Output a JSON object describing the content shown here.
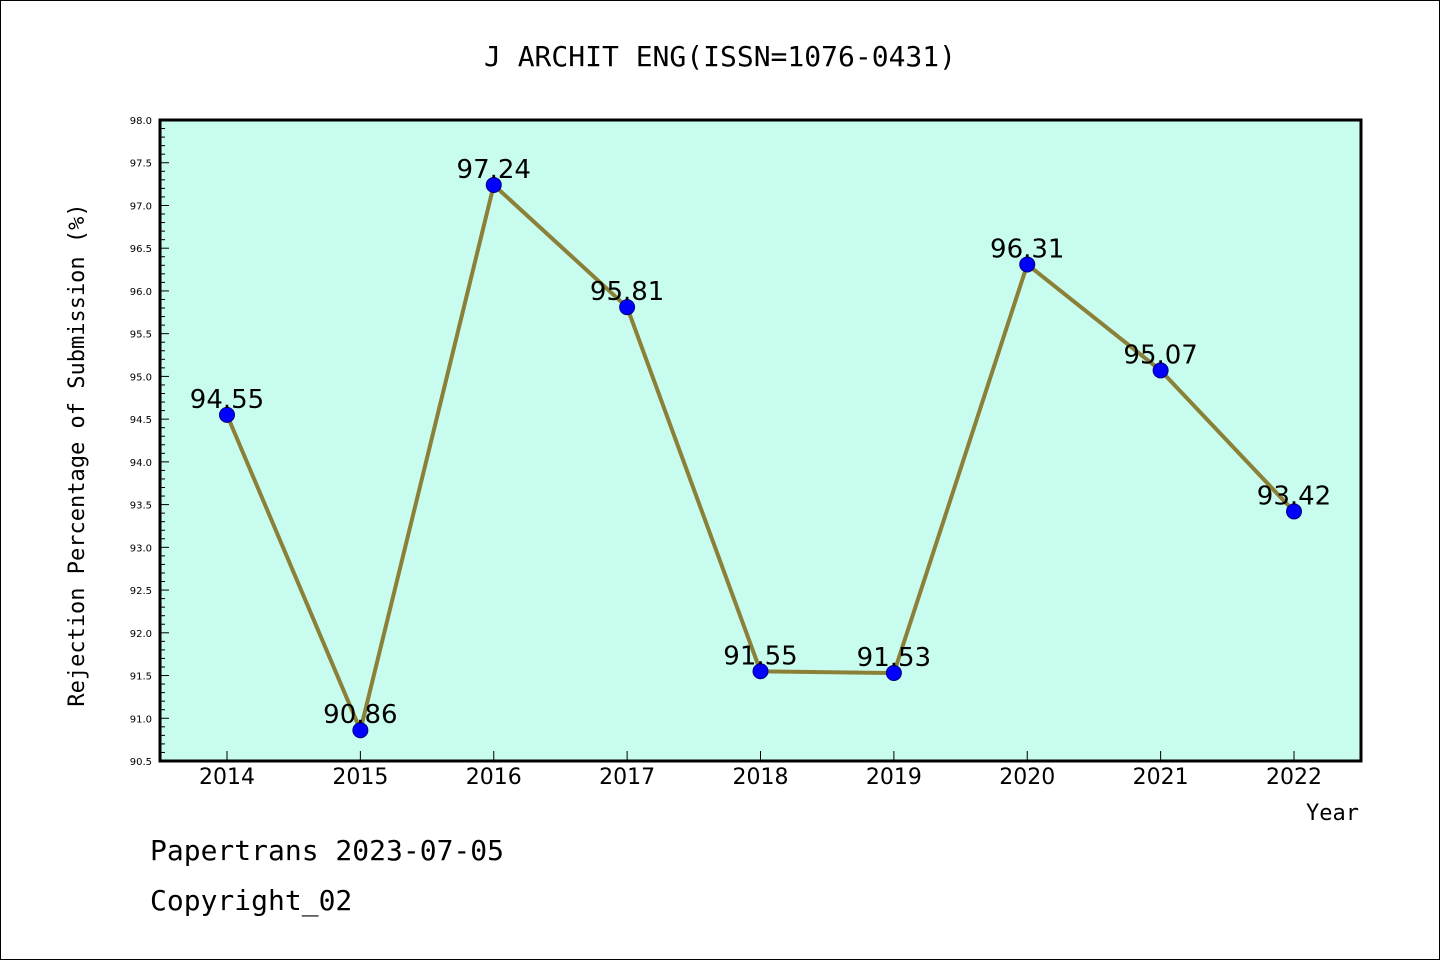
{
  "footer": {
    "line1": "Papertrans 2023-07-05",
    "line2": "Copyright_02"
  },
  "colors": {
    "plot_background": "#c8fcee",
    "line": "#8b8038",
    "marker": "#0000ff",
    "marker_edge": "#000080"
  },
  "chart_data": {
    "type": "line",
    "title": "J ARCHIT ENG(ISSN=1076-0431)",
    "xlabel": "Year",
    "ylabel": "Rejection Percentage of Submission (%)",
    "categories": [
      "2014",
      "2015",
      "2016",
      "2017",
      "2018",
      "2019",
      "2020",
      "2021",
      "2022"
    ],
    "values": [
      94.55,
      90.86,
      97.24,
      95.81,
      91.55,
      91.53,
      96.31,
      95.07,
      93.42
    ],
    "data_labels": [
      "94.55",
      "90.86",
      "97.24",
      "95.81",
      "91.55",
      "91.53",
      "96.31",
      "95.07",
      "93.42"
    ],
    "ylim": [
      90.5,
      98.0
    ],
    "yticks": [
      "90.5",
      "91.0",
      "91.5",
      "92.0",
      "92.5",
      "93.0",
      "93.5",
      "94.0",
      "94.5",
      "95.0",
      "95.5",
      "96.0",
      "96.5",
      "97.0",
      "97.5",
      "98.0"
    ],
    "grid": false,
    "legend": "none"
  }
}
